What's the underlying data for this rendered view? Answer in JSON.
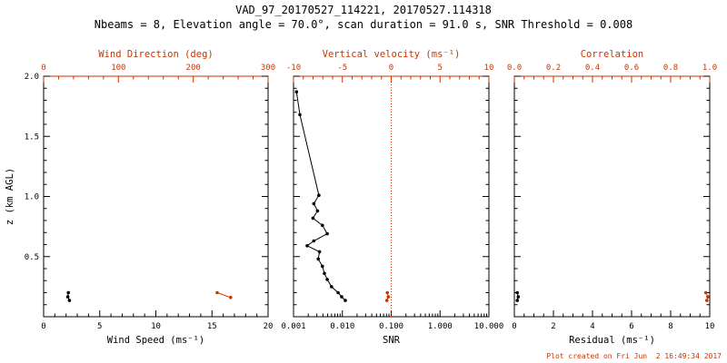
{
  "title": "VAD_97_20170527_114221, 20170527.114318",
  "subtitle": "Nbeams = 8, Elevation angle = 70.0°, scan duration = 91.0 s, SNR Threshold = 0.008",
  "footer": {
    "text": "Plot created on Fri Jun  2 16:49:34 2017"
  },
  "colors": {
    "primary": "#000000",
    "accent": "#cc3300",
    "background": "#ffffff"
  },
  "chart_data": [
    {
      "type": "scatter",
      "panel": "wind",
      "xlabel": "Wind Speed (ms⁻¹)",
      "x_scale": "linear",
      "xlim": [
        0,
        20
      ],
      "xticks": [
        0,
        5,
        10,
        15,
        20
      ],
      "xtick_labels": [
        "0",
        "5",
        "10",
        "15",
        "20"
      ],
      "x_minor_step": 1,
      "top_label": "Wind Direction (deg)",
      "top_scale": "linear",
      "top_lim": [
        0,
        300
      ],
      "top_ticks": [
        0,
        100,
        200,
        300
      ],
      "top_tick_labels": [
        "0",
        "100",
        "200",
        "300"
      ],
      "top_minor_step": 20,
      "ylabel": "z (km AGL)",
      "ylim": [
        0,
        2
      ],
      "yticks": [
        0.5,
        1.0,
        1.5,
        2.0
      ],
      "ytick_labels": [
        "0.5",
        "1.0",
        "1.5",
        "2.0"
      ],
      "y_minor_step": 0.1,
      "show_ytick_labels": true,
      "series": [
        {
          "name": "wind_speed",
          "axis": "bottom",
          "color": "black",
          "line": true,
          "points": [
            [
              2.2,
              0.2
            ],
            [
              2.15,
              0.165
            ],
            [
              2.3,
              0.135
            ]
          ]
        },
        {
          "name": "wind_direction",
          "axis": "top",
          "color": "red",
          "line": true,
          "points": [
            [
              232,
              0.2
            ],
            [
              250,
              0.16
            ]
          ]
        }
      ]
    },
    {
      "type": "scatter",
      "panel": "snr",
      "xlabel": "SNR",
      "x_scale": "log",
      "xlim": [
        0.001,
        10
      ],
      "xticks": [
        0.001,
        0.01,
        0.1,
        1,
        10
      ],
      "xtick_labels": [
        "0.001",
        "0.010",
        "0.100",
        "1.000",
        "10.000"
      ],
      "x_minor_step": null,
      "top_label": "Vertical velocity (ms⁻¹)",
      "top_scale": "linear",
      "top_lim": [
        -10,
        10
      ],
      "top_ticks": [
        -10,
        -5,
        0,
        5,
        10
      ],
      "top_tick_labels": [
        "-10",
        "-5",
        "0",
        "5",
        "10"
      ],
      "top_minor_step": 1,
      "ylabel": "",
      "ylim": [
        0,
        2
      ],
      "yticks": [
        0.5,
        1.0,
        1.5,
        2.0
      ],
      "ytick_labels": [
        "0.5",
        "1.0",
        "1.5",
        "2.0"
      ],
      "y_minor_step": 0.1,
      "show_ytick_labels": false,
      "refline_top": 0,
      "series": [
        {
          "name": "snr_profile",
          "axis": "bottom",
          "color": "black",
          "line": true,
          "points": [
            [
              0.00115,
              1.87
            ],
            [
              0.00135,
              1.68
            ],
            [
              0.0033,
              1.01
            ],
            [
              0.0026,
              0.94
            ],
            [
              0.0031,
              0.88
            ],
            [
              0.0025,
              0.82
            ],
            [
              0.0039,
              0.76
            ],
            [
              0.0049,
              0.69
            ],
            [
              0.0026,
              0.63
            ],
            [
              0.0019,
              0.59
            ],
            [
              0.0034,
              0.54
            ],
            [
              0.0032,
              0.48
            ],
            [
              0.0039,
              0.42
            ],
            [
              0.0043,
              0.36
            ],
            [
              0.0049,
              0.31
            ],
            [
              0.006,
              0.25
            ],
            [
              0.0082,
              0.2
            ],
            [
              0.0097,
              0.165
            ],
            [
              0.0115,
              0.135
            ]
          ]
        },
        {
          "name": "vertical_velocity",
          "axis": "top",
          "color": "red",
          "line": true,
          "points": [
            [
              -0.4,
              0.2
            ],
            [
              -0.3,
              0.165
            ],
            [
              -0.45,
              0.135
            ]
          ]
        }
      ]
    },
    {
      "type": "scatter",
      "panel": "residual",
      "xlabel": "Residual (ms⁻¹)",
      "x_scale": "linear",
      "xlim": [
        0,
        10
      ],
      "xticks": [
        0,
        2,
        4,
        6,
        8,
        10
      ],
      "xtick_labels": [
        "0",
        "2",
        "4",
        "6",
        "8",
        "10"
      ],
      "x_minor_step": 0.5,
      "top_label": "Correlation",
      "top_scale": "linear",
      "top_lim": [
        0,
        1
      ],
      "top_ticks": [
        0,
        0.2,
        0.4,
        0.6,
        0.8,
        1.0
      ],
      "top_tick_labels": [
        "0.0",
        "0.2",
        "0.4",
        "0.6",
        "0.8",
        "1.0"
      ],
      "top_minor_step": 0.05,
      "ylabel": "",
      "ylim": [
        0,
        2
      ],
      "yticks": [
        0.5,
        1.0,
        1.5,
        2.0
      ],
      "ytick_labels": [
        "0.5",
        "1.0",
        "1.5",
        "2.0"
      ],
      "y_minor_step": 0.1,
      "show_ytick_labels": false,
      "series": [
        {
          "name": "residual",
          "axis": "bottom",
          "color": "black",
          "line": true,
          "points": [
            [
              0.15,
              0.2
            ],
            [
              0.2,
              0.165
            ],
            [
              0.15,
              0.135
            ]
          ]
        },
        {
          "name": "correlation",
          "axis": "top",
          "color": "red",
          "line": true,
          "points": [
            [
              0.98,
              0.2
            ],
            [
              0.99,
              0.165
            ],
            [
              0.985,
              0.135
            ]
          ]
        }
      ]
    }
  ]
}
